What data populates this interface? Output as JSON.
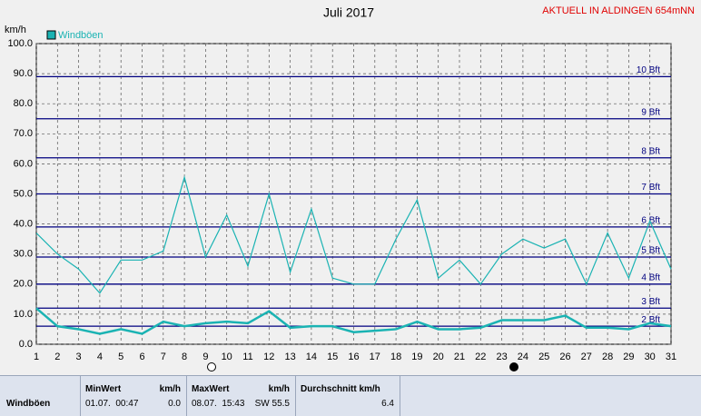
{
  "chart_data": {
    "type": "line",
    "title": "Juli 2017",
    "subtitle": "AKTUELL IN ALDINGEN 654mNN",
    "y_label": "km/h",
    "x": [
      1,
      2,
      3,
      4,
      5,
      6,
      7,
      8,
      9,
      10,
      11,
      12,
      13,
      14,
      15,
      16,
      17,
      18,
      19,
      20,
      21,
      22,
      23,
      24,
      25,
      26,
      27,
      28,
      29,
      30,
      31
    ],
    "xlim": [
      1,
      31
    ],
    "xticks": [
      1,
      2,
      3,
      4,
      5,
      6,
      7,
      8,
      9,
      10,
      11,
      12,
      13,
      14,
      15,
      16,
      17,
      18,
      19,
      20,
      21,
      22,
      23,
      24,
      25,
      26,
      27,
      28,
      29,
      30,
      31
    ],
    "ylim": [
      0,
      100
    ],
    "yticks": [
      {
        "value": 0,
        "label": "0.0"
      },
      {
        "value": 10,
        "label": "10.0"
      },
      {
        "value": 20,
        "label": "20.0"
      },
      {
        "value": 30,
        "label": "30.0"
      },
      {
        "value": 40,
        "label": "40.0"
      },
      {
        "value": 50,
        "label": "50.0"
      },
      {
        "value": 60,
        "label": "60.0"
      },
      {
        "value": 70,
        "label": "70.0"
      },
      {
        "value": 80,
        "label": "80.0"
      },
      {
        "value": 90,
        "label": "90.0"
      },
      {
        "value": 100,
        "label": "100.0"
      }
    ],
    "grid": true,
    "series": [
      {
        "name": "Windböen",
        "color": "#1ab3b3",
        "values": [
          37,
          30,
          25,
          17,
          28,
          28,
          31,
          55.5,
          29,
          43,
          26,
          50,
          24,
          45,
          22,
          20,
          20,
          35,
          48,
          22,
          28,
          20,
          30,
          35,
          32,
          35,
          20,
          37,
          22,
          41,
          25
        ]
      },
      {
        "color": "#1ab3b3",
        "values": [
          12,
          6,
          5,
          3.5,
          5,
          3.5,
          7.5,
          6,
          7,
          7.5,
          7,
          11,
          5.5,
          6,
          6,
          4,
          4.5,
          5,
          7.5,
          5,
          5,
          5.5,
          8,
          8,
          8,
          9.5,
          5.5,
          5.5,
          5,
          7,
          6
        ]
      }
    ],
    "annotations": [
      {
        "value": 6,
        "label": "2 Bft"
      },
      {
        "value": 12,
        "label": "3 Bft"
      },
      {
        "value": 20,
        "label": "4 Bft"
      },
      {
        "value": 29,
        "label": "5 Bft"
      },
      {
        "value": 39,
        "label": "6 Bft"
      },
      {
        "value": 50,
        "label": "7 Bft"
      },
      {
        "value": 62,
        "label": "8 Bft"
      },
      {
        "value": 75,
        "label": "9 Bft"
      },
      {
        "value": 89,
        "label": "10 Bft"
      }
    ],
    "annotation_color": "#000080"
  },
  "stats": {
    "row_label": "Windböen",
    "min": {
      "title": "MinWert",
      "unit": "km/h",
      "time": "01.07.  00:47",
      "value": "0.0"
    },
    "max": {
      "title": "MaxWert",
      "unit": "km/h",
      "time": "08.07.  15:43",
      "value": "SW 55.5"
    },
    "avg": {
      "title": "Durchschnitt km/h",
      "value": "6.4"
    }
  }
}
